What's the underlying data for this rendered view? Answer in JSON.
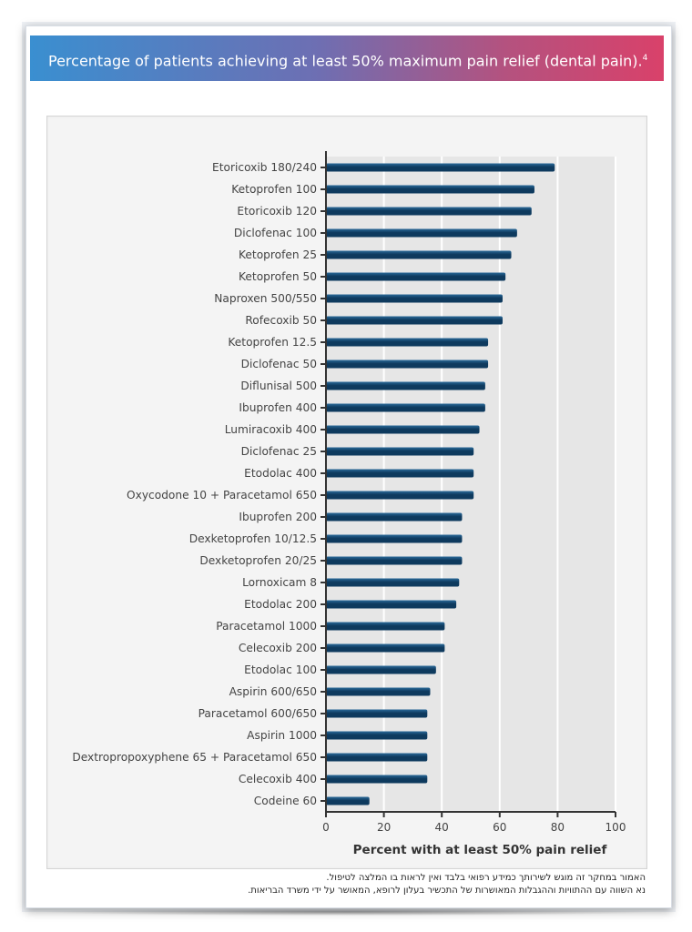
{
  "header": {
    "title": "Percentage of patients achieving at least 50% maximum pain relief (dental pain).",
    "ref": "4"
  },
  "chart_data": {
    "type": "bar",
    "orientation": "horizontal",
    "categories": [
      "Etoricoxib 180/240",
      "Ketoprofen 100",
      "Etoricoxib 120",
      "Diclofenac 100",
      "Ketoprofen 25",
      "Ketoprofen 50",
      "Naproxen 500/550",
      "Rofecoxib 50",
      "Ketoprofen 12.5",
      "Diclofenac 50",
      "Diflunisal 500",
      "Ibuprofen 400",
      "Lumiracoxib 400",
      "Diclofenac 25",
      "Etodolac 400",
      "Oxycodone 10 + Paracetamol 650",
      "Ibuprofen 200",
      "Dexketoprofen 10/12.5",
      "Dexketoprofen 20/25",
      "Lornoxicam 8",
      "Etodolac 200",
      "Paracetamol 1000",
      "Celecoxib 200",
      "Etodolac 100",
      "Aspirin 600/650",
      "Paracetamol 600/650",
      "Aspirin 1000",
      "Dextropropoxyphene 65 + Paracetamol 650",
      "Celecoxib 400",
      "Codeine 60"
    ],
    "values": [
      79,
      72,
      71,
      66,
      64,
      62,
      61,
      61,
      56,
      56,
      55,
      55,
      53,
      51,
      51,
      51,
      47,
      47,
      47,
      46,
      45,
      41,
      41,
      38,
      36,
      35,
      35,
      35,
      35,
      15
    ],
    "xlim": [
      0,
      100
    ],
    "xticks": [
      "0",
      "20",
      "40",
      "60",
      "80",
      "100"
    ],
    "xlabel": "Percent with at least 50% pain relief",
    "grid": true,
    "colors": {
      "bar_dark": "#0e3a5e",
      "bar_light": "#2a6a99",
      "plot_bg": "#e6e6e6"
    }
  },
  "footnote": {
    "line1": "האמור במחקר זה מוגש לשירותך כמידע רפואי בלבד ואין לראות בו המלצה לטיפול.",
    "line2": "נא השווה עם ההתוויות וההגבלות המאושרות של התכשיר בעלון לרופא, המאושר על ידי משרד הבריאות."
  }
}
